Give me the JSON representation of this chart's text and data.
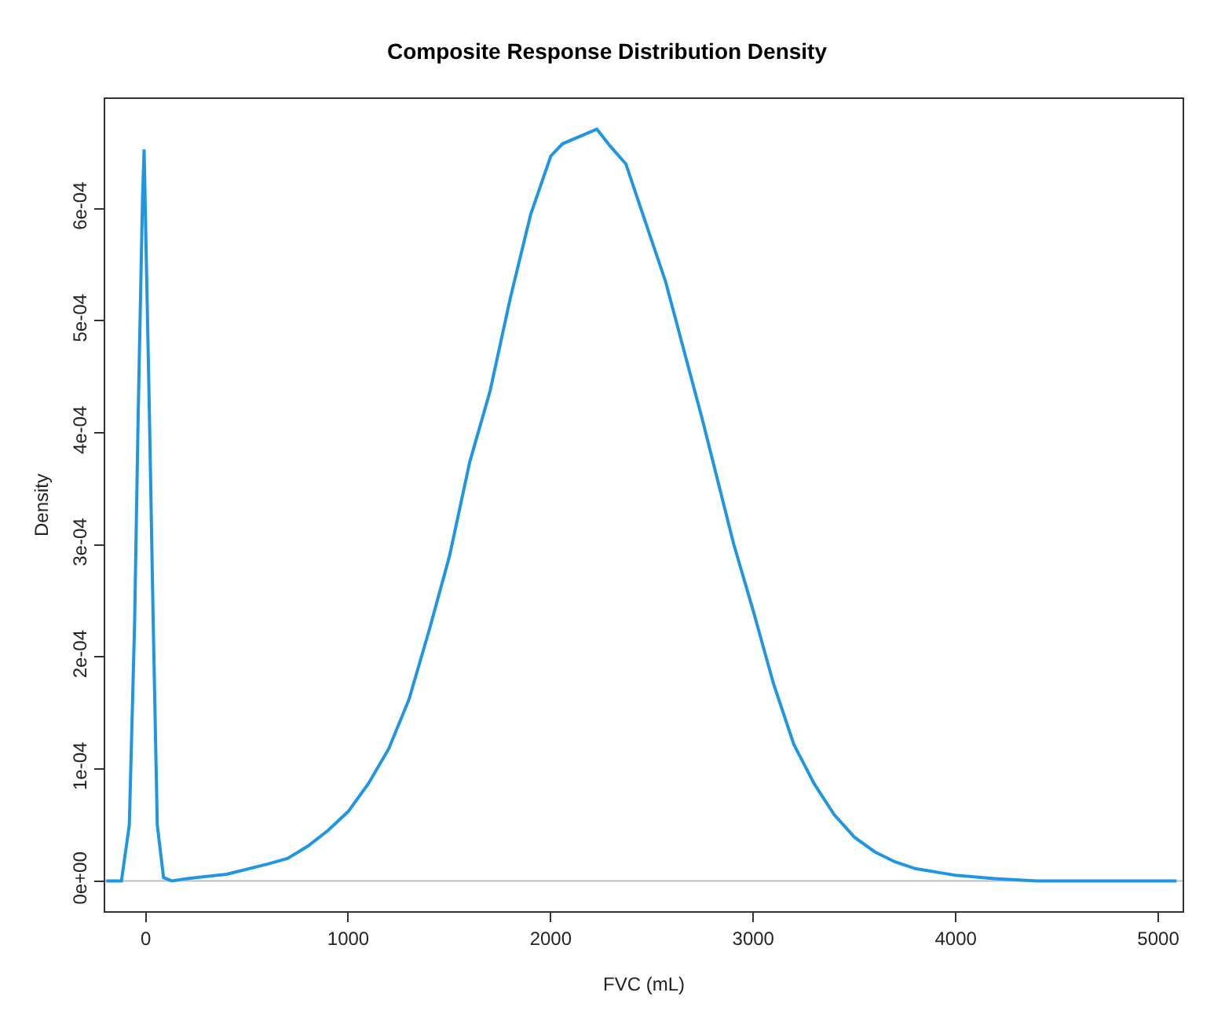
{
  "chart_data": {
    "type": "line",
    "title": "Composite Response Distribution Density",
    "xlabel": "FVC (mL)",
    "ylabel": "Density",
    "x": [
      -195,
      -120,
      -81,
      -55,
      -37,
      -16,
      -8,
      -3,
      18,
      37,
      57,
      88,
      130,
      200,
      400,
      600,
      700,
      800,
      900,
      1000,
      1100,
      1200,
      1300,
      1400,
      1500,
      1600,
      1700,
      1800,
      1901,
      2000,
      2058,
      2228,
      2293,
      2371,
      2410,
      2567,
      2747,
      2903,
      3000,
      3100,
      3200,
      3300,
      3400,
      3500,
      3600,
      3700,
      3800,
      4000,
      4200,
      4400,
      5090
    ],
    "series": [
      {
        "color": "#2196e0",
        "values": [
          0,
          0,
          5e-05,
          0.00023,
          0.000419,
          0.000608,
          0.000653,
          0.000608,
          0.000419,
          0.00023,
          5e-05,
          3e-06,
          0,
          2e-06,
          6e-06,
          1.5e-05,
          2e-05,
          3.1e-05,
          4.5e-05,
          6.2e-05,
          8.7e-05,
          0.000118,
          0.000162,
          0.000224,
          0.00029,
          0.000374,
          0.000437,
          0.00052,
          0.000595,
          0.000647,
          0.000658,
          0.000671,
          0.000656,
          0.00064,
          0.000619,
          0.000535,
          0.000413,
          0.000301,
          0.000241,
          0.000176,
          0.000122,
          8.7e-05,
          5.9e-05,
          3.9e-05,
          2.6e-05,
          1.7e-05,
          1.1e-05,
          5e-06,
          2e-06,
          0,
          0
        ]
      }
    ],
    "xlim": [
      -200,
      5120
    ],
    "xticks": [
      0,
      1000,
      2000,
      3000,
      4000,
      5000
    ],
    "ylim": [
      -2.7e-05,
      0.000698
    ],
    "yticks": [
      {
        "value": 0,
        "label": "0e+00"
      },
      {
        "value": 0.0001,
        "label": "1e-04"
      },
      {
        "value": 0.0002,
        "label": "2e-04"
      },
      {
        "value": 0.0003,
        "label": "3e-04"
      },
      {
        "value": 0.0004,
        "label": "4e-04"
      },
      {
        "value": 0.0005,
        "label": "5e-04"
      },
      {
        "value": 0.0006,
        "label": "6e-04"
      }
    ],
    "ref_lines": [
      {
        "axis": "y",
        "value": 0,
        "color": "#bebebe"
      }
    ],
    "grid": false,
    "marker": "none",
    "line_style": "solid"
  }
}
